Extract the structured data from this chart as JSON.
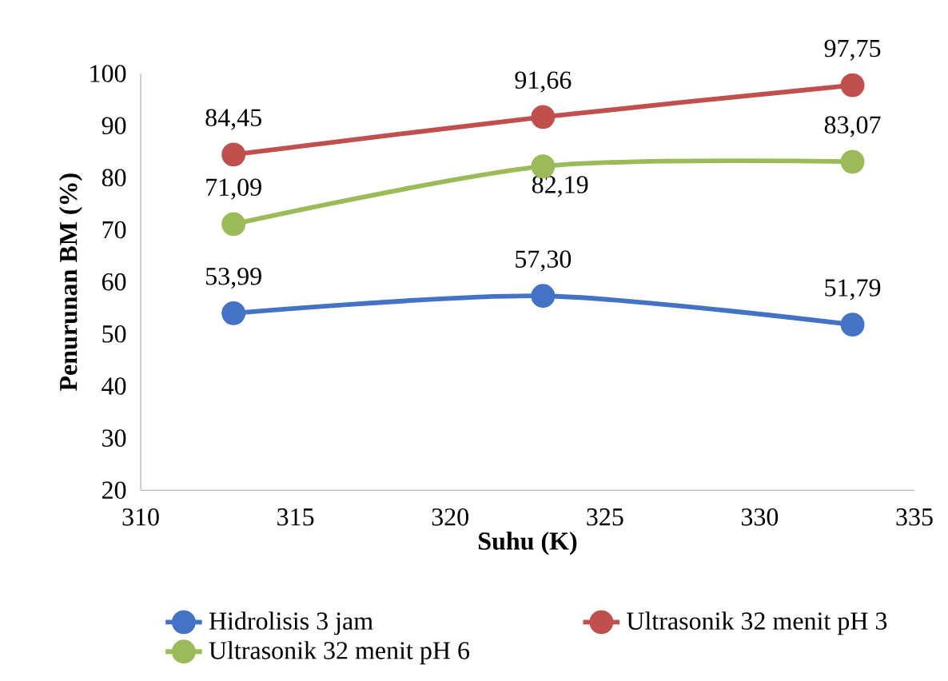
{
  "chart_data": {
    "type": "line",
    "xlabel": "Suhu (K)",
    "ylabel": "Penurunan BM (%)",
    "x": [
      313,
      323,
      333
    ],
    "series": [
      {
        "name": "Hidrolisis 3 jam",
        "color": "#4472c4",
        "values": [
          53.99,
          57.3,
          51.79
        ],
        "value_labels": [
          "53,99",
          "57,30",
          "51,79"
        ]
      },
      {
        "name": "Ultrasonik 32 menit pH 3",
        "color": "#c0504d",
        "values": [
          84.45,
          91.66,
          97.75
        ],
        "value_labels": [
          "84,45",
          "91,66",
          "97,75"
        ]
      },
      {
        "name": "Ultrasonik 32 menit pH 6",
        "color": "#9bbb59",
        "values": [
          71.09,
          82.19,
          83.07
        ],
        "value_labels": [
          "71,09",
          "82,19",
          "83,07"
        ]
      }
    ],
    "xlim": [
      310,
      335
    ],
    "xticks": [
      310,
      315,
      320,
      325,
      330,
      335
    ],
    "ylim": [
      20,
      100
    ],
    "yticks": [
      20,
      30,
      40,
      50,
      60,
      70,
      80,
      90,
      100
    ],
    "grid": false,
    "legend": "bottom",
    "marker": "circle",
    "line_style": "solid"
  }
}
